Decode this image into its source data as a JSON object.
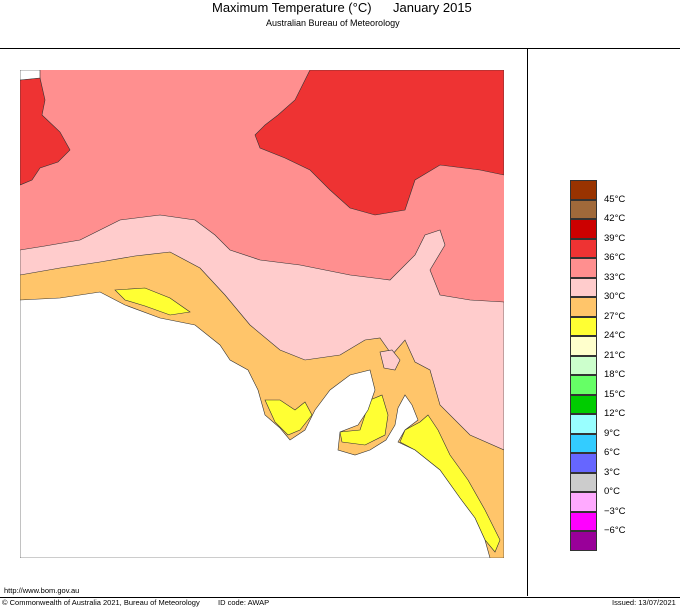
{
  "header": {
    "title": "Maximum Temperature (°C)",
    "period": "January 2015",
    "subtitle": "Australian Bureau of Meteorology"
  },
  "legend": {
    "bins": [
      {
        "label": "",
        "color": "#993300"
      },
      {
        "label": "45°C",
        "color": "#a0693a"
      },
      {
        "label": "42°C",
        "color": "#cc0000"
      },
      {
        "label": "39°C",
        "color": "#ee3333"
      },
      {
        "label": "36°C",
        "color": "#ff8f8f"
      },
      {
        "label": "33°C",
        "color": "#ffcccc"
      },
      {
        "label": "30°C",
        "color": "#ffc56a"
      },
      {
        "label": "27°C",
        "color": "#ffff33"
      },
      {
        "label": "24°C",
        "color": "#ffffcc"
      },
      {
        "label": "21°C",
        "color": "#ccffcc"
      },
      {
        "label": "18°C",
        "color": "#66ff66"
      },
      {
        "label": "15°C",
        "color": "#00cc00"
      },
      {
        "label": "12°C",
        "color": "#99ffff"
      },
      {
        "label": "9°C",
        "color": "#33ccff"
      },
      {
        "label": "6°C",
        "color": "#6666ff"
      },
      {
        "label": "3°C",
        "color": "#cccccc"
      },
      {
        "label": "0°C",
        "color": "#ffaaff"
      },
      {
        "label": "−3°C",
        "color": "#ff00ff"
      },
      {
        "label": "−6°C",
        "color": "#990099"
      }
    ]
  },
  "footer": {
    "url": "http://www.bom.gov.au",
    "copyright": "© Commonwealth of Australia 2021, Bureau of Meteorology",
    "id_code": "ID code: AWAP",
    "issued": "Issued: 13/07/2021"
  }
}
